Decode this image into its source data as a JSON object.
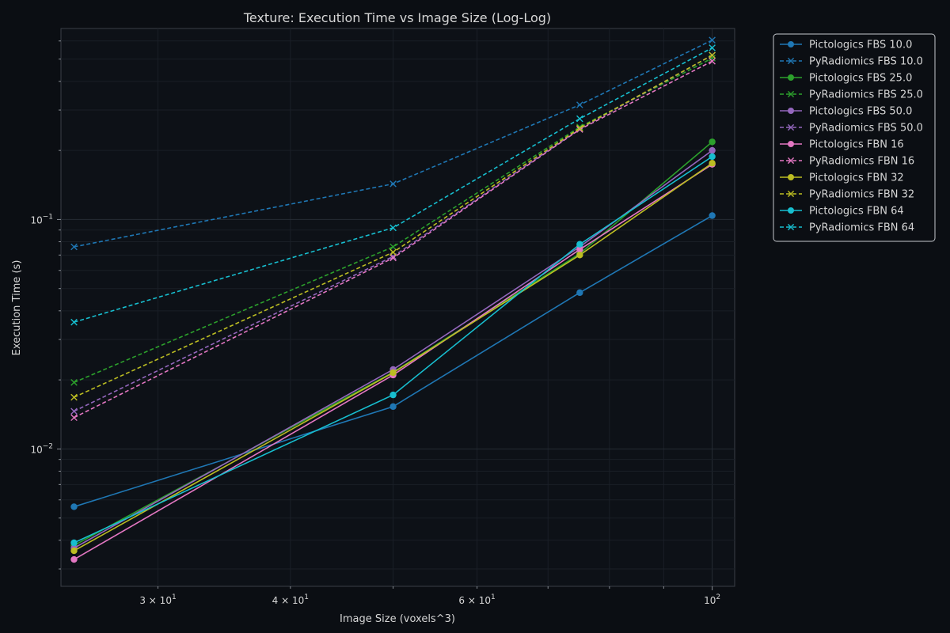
{
  "chart_data": {
    "type": "line",
    "title": "Texture: Execution Time vs Image Size (Log-Log)",
    "xlabel": "Image Size (voxels^3)",
    "ylabel": "Execution Time (s)",
    "x_scale": "log",
    "y_scale": "log",
    "xlim": [
      24.3,
      105
    ],
    "ylim": [
      0.00252,
      0.68
    ],
    "grid": true,
    "legend_position": "outside-right",
    "x_ticks": [
      {
        "value": 30,
        "base": "3 × 10",
        "exp": "1"
      },
      {
        "value": 40,
        "base": "4 × 10",
        "exp": "1"
      },
      {
        "value": 60,
        "base": "6 × 10",
        "exp": "1"
      },
      {
        "value": 100,
        "base": "10",
        "exp": "2"
      }
    ],
    "y_ticks": [
      {
        "value": 0.01,
        "base": "10",
        "exp": "−2"
      },
      {
        "value": 0.1,
        "base": "10",
        "exp": "−1"
      }
    ],
    "x": [
      25,
      50,
      75,
      100
    ],
    "series": [
      {
        "name": "Pictologics FBS 10.0",
        "color": "#1f77b4",
        "dash": false,
        "marker": "circle",
        "values": [
          0.0056,
          0.0153,
          0.048,
          0.104
        ]
      },
      {
        "name": "PyRadiomics FBS 10.0",
        "color": "#1f77b4",
        "dash": true,
        "marker": "x",
        "values": [
          0.076,
          0.143,
          0.316,
          0.605
        ]
      },
      {
        "name": "Pictologics FBS 25.0",
        "color": "#2ca02c",
        "dash": false,
        "marker": "circle",
        "values": [
          0.0038,
          0.0216,
          0.071,
          0.218
        ]
      },
      {
        "name": "PyRadiomics FBS 25.0",
        "color": "#2ca02c",
        "dash": true,
        "marker": "x",
        "values": [
          0.0195,
          0.076,
          0.253,
          0.505
        ]
      },
      {
        "name": "Pictologics FBS 50.0",
        "color": "#9467bd",
        "dash": false,
        "marker": "circle",
        "values": [
          0.0037,
          0.0222,
          0.076,
          0.2
        ]
      },
      {
        "name": "PyRadiomics FBS 50.0",
        "color": "#9467bd",
        "dash": true,
        "marker": "x",
        "values": [
          0.0146,
          0.069,
          0.248,
          0.52
        ]
      },
      {
        "name": "Pictologics FBN 16",
        "color": "#e377c2",
        "dash": false,
        "marker": "circle",
        "values": [
          0.0033,
          0.021,
          0.074,
          0.174
        ]
      },
      {
        "name": "PyRadiomics FBN 16",
        "color": "#e377c2",
        "dash": true,
        "marker": "x",
        "values": [
          0.0137,
          0.068,
          0.247,
          0.49
        ]
      },
      {
        "name": "Pictologics FBN 32",
        "color": "#bcbd22",
        "dash": false,
        "marker": "circle",
        "values": [
          0.0036,
          0.0215,
          0.07,
          0.176
        ]
      },
      {
        "name": "PyRadiomics FBN 32",
        "color": "#bcbd22",
        "dash": true,
        "marker": "x",
        "values": [
          0.0168,
          0.072,
          0.25,
          0.52
        ]
      },
      {
        "name": "Pictologics FBN 64",
        "color": "#17becf",
        "dash": false,
        "marker": "circle",
        "values": [
          0.0039,
          0.0172,
          0.078,
          0.188
        ]
      },
      {
        "name": "PyRadiomics FBN 64",
        "color": "#17becf",
        "dash": true,
        "marker": "x",
        "values": [
          0.0357,
          0.092,
          0.275,
          0.56
        ]
      }
    ]
  }
}
